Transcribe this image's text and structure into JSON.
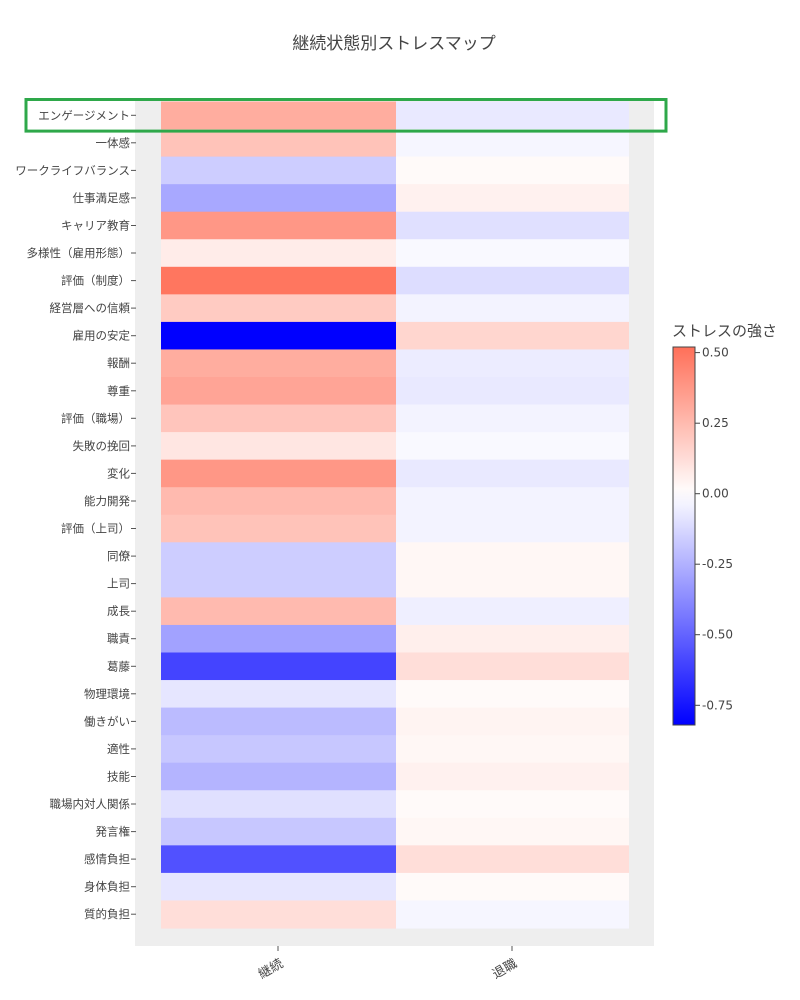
{
  "chart_data": {
    "type": "heatmap",
    "title": "継続状態別ストレスマップ",
    "x_categories": [
      "継続",
      "退職"
    ],
    "y_categories": [
      "エンゲージメント",
      "一体感",
      "ワークライフバランス",
      "仕事満足感",
      "キャリア教育",
      "多様性（雇用形態）",
      "評価（制度）",
      "経営層への信頼",
      "雇用の安定",
      "報酬",
      "尊重",
      "評価（職場）",
      "失敗の挽回",
      "変化",
      "能力開発",
      "評価（上司）",
      "同僚",
      "上司",
      "成長",
      "職責",
      "葛藤",
      "物理環境",
      "働きがい",
      "適性",
      "技能",
      "職場内対人関係",
      "発言権",
      "感情負担",
      "身体負担",
      "質的負担"
    ],
    "values": [
      [
        0.3,
        -0.07
      ],
      [
        0.22,
        -0.03
      ],
      [
        -0.16,
        0.02
      ],
      [
        -0.28,
        0.05
      ],
      [
        0.38,
        -0.1
      ],
      [
        0.07,
        -0.02
      ],
      [
        0.5,
        -0.11
      ],
      [
        0.19,
        -0.04
      ],
      [
        -0.82,
        0.15
      ],
      [
        0.3,
        -0.06
      ],
      [
        0.33,
        -0.07
      ],
      [
        0.21,
        -0.04
      ],
      [
        0.09,
        -0.02
      ],
      [
        0.38,
        -0.07
      ],
      [
        0.25,
        -0.04
      ],
      [
        0.22,
        -0.04
      ],
      [
        -0.16,
        0.03
      ],
      [
        -0.16,
        0.03
      ],
      [
        0.25,
        -0.05
      ],
      [
        -0.3,
        0.06
      ],
      [
        -0.6,
        0.12
      ],
      [
        -0.08,
        0.02
      ],
      [
        -0.22,
        0.04
      ],
      [
        -0.18,
        0.03
      ],
      [
        -0.24,
        0.05
      ],
      [
        -0.1,
        0.02
      ],
      [
        -0.18,
        0.03
      ],
      [
        -0.56,
        0.12
      ],
      [
        -0.08,
        0.02
      ],
      [
        0.12,
        -0.03
      ]
    ],
    "colorbar": {
      "title": "ストレスの強さ",
      "ticks": [
        "0.50",
        "0.25",
        "0.00",
        "-0.25",
        "-0.50",
        "-0.75"
      ],
      "tick_values": [
        0.5,
        0.25,
        0,
        -0.25,
        -0.5,
        -0.75
      ],
      "range": [
        -0.82,
        0.52
      ],
      "colors": {
        "min": "#0000ff",
        "mid": "#ffffff",
        "max": "#ff7059"
      }
    },
    "highlight_row": "エンゲージメント",
    "highlight_color": "#2ea84a",
    "grid": true
  }
}
